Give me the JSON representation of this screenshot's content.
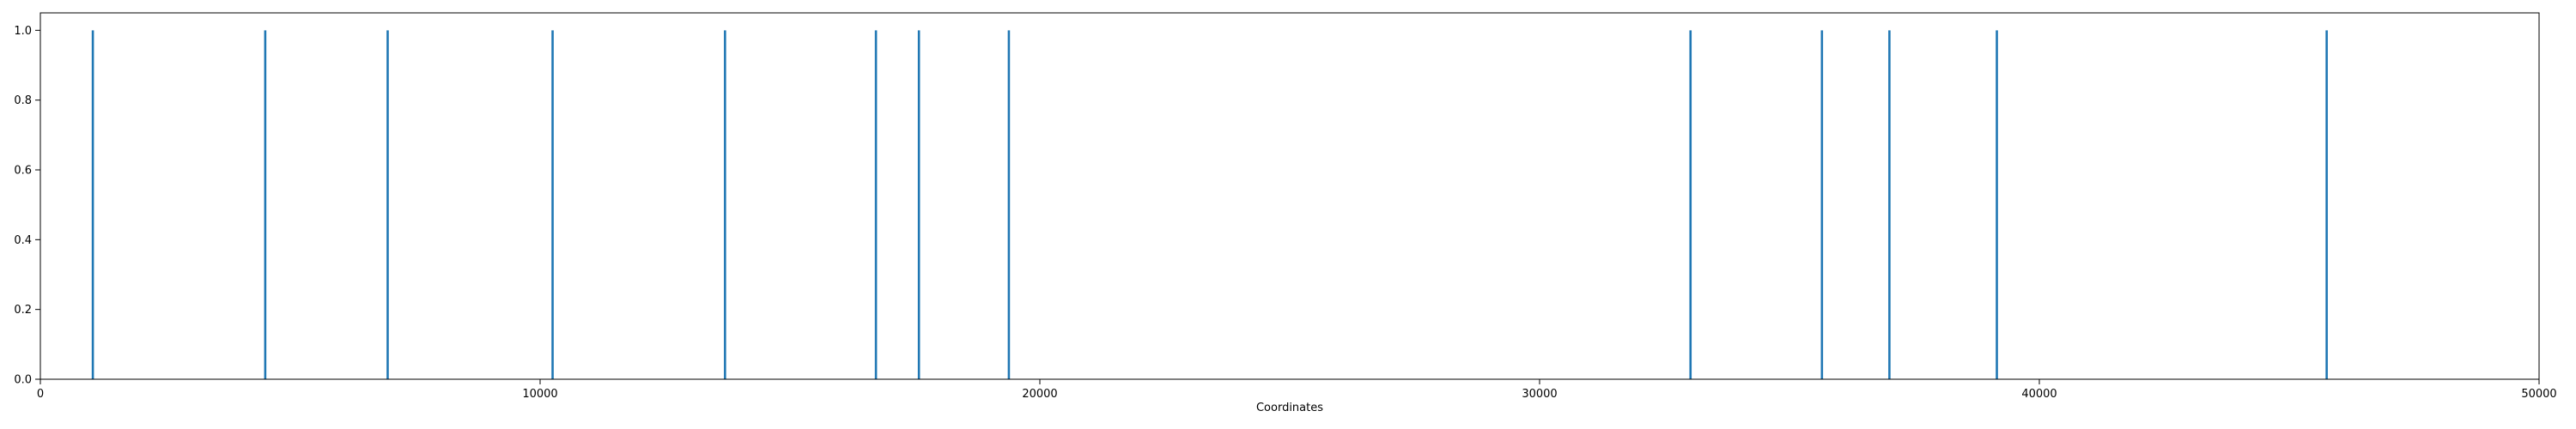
{
  "chart_data": {
    "type": "line",
    "title": "",
    "xlabel": "Coordinates",
    "ylabel": "",
    "xlim": [
      0,
      50000
    ],
    "ylim": [
      0,
      1.05
    ],
    "x_ticks": [
      "0",
      "10000",
      "20000",
      "30000",
      "40000",
      "50000"
    ],
    "x_tick_values": [
      0,
      10000,
      20000,
      30000,
      40000,
      50000
    ],
    "y_ticks": [
      "0.0",
      "0.2",
      "0.4",
      "0.6",
      "0.8",
      "1.0"
    ],
    "y_tick_values": [
      0,
      0.2,
      0.4,
      0.6,
      0.8,
      1.0
    ],
    "grid": false,
    "legend": "none",
    "series": [
      {
        "color": "#1f77b4",
        "x": [
          1050,
          4500,
          6950,
          10250,
          13700,
          16720,
          17580,
          19380,
          33020,
          35650,
          37000,
          39150,
          45750
        ],
        "y": [
          1,
          1,
          1,
          1,
          1,
          1,
          1,
          1,
          1,
          1,
          1,
          1,
          1
        ]
      }
    ]
  }
}
